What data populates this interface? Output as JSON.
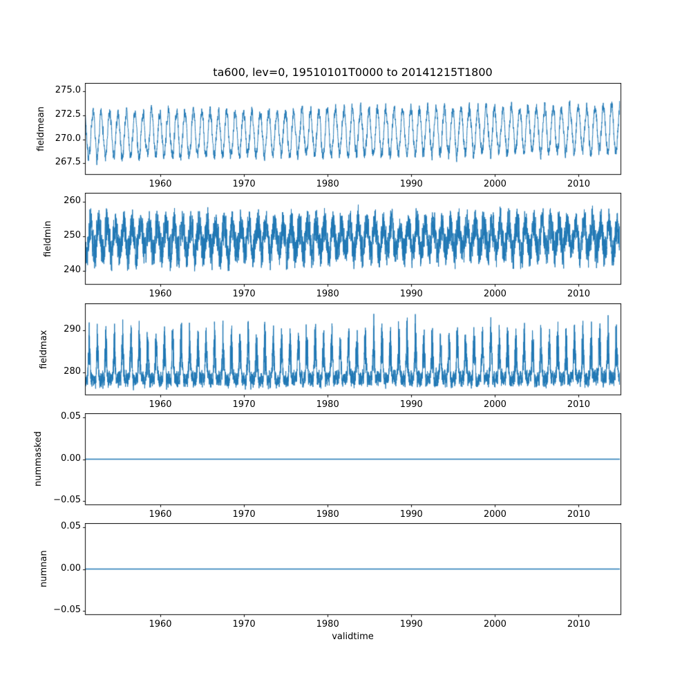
{
  "figure": {
    "background": "#ffffff",
    "line_color": "#1f77b4",
    "spine_color": "#000000"
  },
  "chart_data": [
    {
      "type": "line",
      "title": "ta600, lev=0, 19510101T0000 to 20141215T1800",
      "ylabel": "fieldmean",
      "xlim": [
        1951,
        2015
      ],
      "xticks": [
        1960,
        1970,
        1980,
        1990,
        2000,
        2010
      ],
      "ylim": [
        266.3,
        275.9
      ],
      "yticks": [
        267.5,
        270.0,
        272.5,
        275.0
      ],
      "ytick_labels": [
        "267.5",
        "270.0",
        "272.5",
        "275.0"
      ],
      "value_range": [
        266.7,
        275.5
      ],
      "color": "#1f77b4",
      "legend": "off",
      "grid": "off",
      "series": {
        "kind": "seasonal",
        "description": "Annual cycle of mean ta600, oscillating roughly between 267.5 and 275 with slight upward trend, 1951-2014 high-frequency samples",
        "n_points": 4200,
        "seed": 7,
        "base": 270.4,
        "trend_total": 0.7,
        "seasonal_amp": 2.3,
        "phase": 0.3,
        "ar_phi": 0.55,
        "noise_amp": 0.5
      }
    },
    {
      "type": "line",
      "title": "",
      "ylabel": "fieldmin",
      "xlim": [
        1951,
        2015
      ],
      "xticks": [
        1960,
        1970,
        1980,
        1990,
        2000,
        2010
      ],
      "ylim": [
        236.0,
        262.5
      ],
      "yticks": [
        240,
        250,
        260
      ],
      "ytick_labels": [
        "240",
        "250",
        "260"
      ],
      "value_range": [
        237.5,
        261.5
      ],
      "color": "#1f77b4",
      "legend": "off",
      "grid": "off",
      "series": {
        "kind": "seasonal",
        "description": "Field minimum of ta600, very noisy band centred near 249-250 spanning roughly 238-261",
        "n_points": 6000,
        "seed": 13,
        "base": 249.2,
        "trend_total": 0.3,
        "seasonal_amp": 4.0,
        "phase": 0.6,
        "ar_phi": 0.35,
        "noise_amp": 4.2
      }
    },
    {
      "type": "line",
      "title": "",
      "ylabel": "fieldmax",
      "xlim": [
        1951,
        2015
      ],
      "xticks": [
        1960,
        1970,
        1980,
        1990,
        2000,
        2010
      ],
      "ylim": [
        274.5,
        296.5
      ],
      "yticks": [
        280,
        290
      ],
      "ytick_labels": [
        "280",
        "290"
      ],
      "value_range": [
        275.5,
        295.5
      ],
      "color": "#1f77b4",
      "legend": "off",
      "grid": "off",
      "series": {
        "kind": "spiky",
        "description": "Field maximum of ta600, dense base band near 277-281 with seasonal upward spikes reaching 288-295",
        "n_points": 6000,
        "seed": 21,
        "base": 278.2,
        "trend_total": 0.4,
        "phase": 0.75,
        "ar_phi": 0.45,
        "noise_amp": 1.6,
        "spike_min": 3.0,
        "spike_max": 14.0
      }
    },
    {
      "type": "line",
      "title": "",
      "ylabel": "nummasked",
      "xlim": [
        1951,
        2015
      ],
      "xticks": [
        1960,
        1970,
        1980,
        1990,
        2000,
        2010
      ],
      "ylim": [
        -0.055,
        0.055
      ],
      "yticks": [
        -0.05,
        0.0,
        0.05
      ],
      "ytick_labels": [
        "−0.05",
        "0.00",
        "0.05"
      ],
      "value_range": [
        0,
        0
      ],
      "color": "#1f77b4",
      "legend": "off",
      "grid": "off",
      "series": {
        "kind": "constant",
        "description": "Number of masked points, constant zero for whole period",
        "value": 0,
        "n_points": 2
      }
    },
    {
      "type": "line",
      "title": "",
      "ylabel": "numnan",
      "xlabel": "validtime",
      "xlim": [
        1951,
        2015
      ],
      "xticks": [
        1960,
        1970,
        1980,
        1990,
        2000,
        2010
      ],
      "ylim": [
        -0.055,
        0.055
      ],
      "yticks": [
        -0.05,
        0.0,
        0.05
      ],
      "ytick_labels": [
        "−0.05",
        "0.00",
        "0.05"
      ],
      "value_range": [
        0,
        0
      ],
      "color": "#1f77b4",
      "legend": "off",
      "grid": "off",
      "series": {
        "kind": "constant",
        "description": "Number of NaN points, constant zero for whole period",
        "value": 0,
        "n_points": 2
      }
    }
  ]
}
